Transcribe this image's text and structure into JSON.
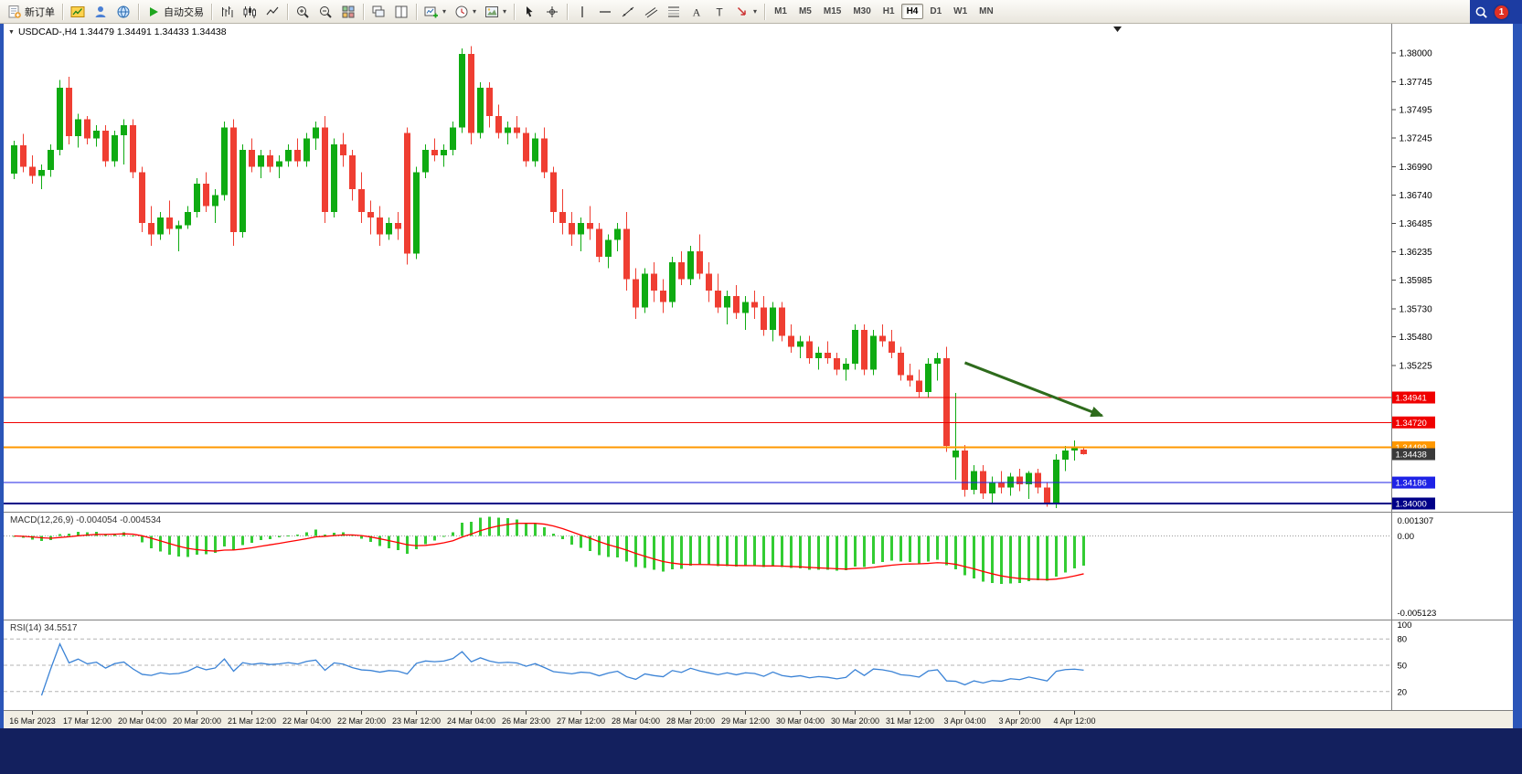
{
  "app": {
    "badge_count": "1"
  },
  "toolbar": {
    "groups": [
      [
        {
          "name": "new-order-button",
          "icon": "neworder",
          "label": "新订单"
        }
      ],
      [
        {
          "name": "market-watch-button",
          "icon": "marketwatch"
        },
        {
          "name": "data-window-button",
          "icon": "datawindow"
        },
        {
          "name": "navigator-button",
          "icon": "navigator"
        }
      ],
      [
        {
          "name": "autotrading-button",
          "icon": "play",
          "label": "自动交易"
        }
      ],
      [
        {
          "name": "bar-chart-button",
          "icon": "bars"
        },
        {
          "name": "candlestick-chart-button",
          "icon": "candles"
        },
        {
          "name": "line-chart-button",
          "icon": "linechart"
        }
      ],
      [
        {
          "name": "zoom-in-button",
          "icon": "zoomin"
        },
        {
          "name": "zoom-out-button",
          "icon": "zoomout"
        },
        {
          "name": "tile-windows-button",
          "icon": "tile"
        }
      ],
      [
        {
          "name": "cascade-windows-button",
          "icon": "wincascade"
        },
        {
          "name": "split-windows-button",
          "icon": "wintile"
        }
      ],
      [
        {
          "name": "indicators-button",
          "icon": "chartplus",
          "caret": true
        },
        {
          "name": "periods-button",
          "icon": "clock",
          "caret": true
        },
        {
          "name": "templates-button",
          "icon": "template",
          "caret": true
        }
      ],
      [
        {
          "name": "cursor-button",
          "icon": "cursor"
        },
        {
          "name": "crosshair-button",
          "icon": "crosshair"
        }
      ],
      [
        {
          "name": "vertical-line-button",
          "icon": "vline"
        },
        {
          "name": "horizontal-line-button",
          "icon": "hline"
        },
        {
          "name": "trendline-button",
          "icon": "trend"
        },
        {
          "name": "equidistant-channel-button",
          "icon": "channel"
        },
        {
          "name": "fibonacci-button",
          "icon": "fibo"
        },
        {
          "name": "text-button",
          "icon": "textA"
        },
        {
          "name": "text-label-button",
          "icon": "textT"
        },
        {
          "name": "arrows-button",
          "icon": "arrowsym",
          "caret": true
        }
      ]
    ],
    "timeframes": [
      "M1",
      "M5",
      "M15",
      "M30",
      "H1",
      "H4",
      "D1",
      "W1",
      "MN"
    ],
    "active_timeframe": "H4"
  },
  "chart": {
    "header": "USDCAD-,H4  1.34479 1.34491 1.34433 1.34438",
    "symbol": "USDCAD-",
    "period": "H4"
  },
  "macd": {
    "label": "MACD(12,26,9) -0.004054 -0.004534",
    "scale": [
      "0.001307",
      "0.00",
      "-0.005123"
    ]
  },
  "rsi": {
    "label": "RSI(14) 34.5517",
    "scale": [
      "100",
      "80",
      "50",
      "20"
    ],
    "levels": [
      80,
      50,
      20
    ]
  },
  "chart_data": {
    "type": "candlestick",
    "symbol": "USDCAD",
    "period": "H4",
    "colors": {
      "bull": "#0fab12",
      "bear": "#ef3e32",
      "macd_histogram": "#33cc33",
      "macd_signal": "#ff0000",
      "rsi_line": "#3b83d6"
    },
    "y_ticks": [
      "1.38000",
      "1.37745",
      "1.37495",
      "1.37245",
      "1.36990",
      "1.36740",
      "1.36485",
      "1.36235",
      "1.35985",
      "1.35730",
      "1.35480",
      "1.35225"
    ],
    "hlines": [
      {
        "price": 1.34941,
        "label": "1.34941",
        "color": "#f00000",
        "width": 1
      },
      {
        "price": 1.3472,
        "label": "1.34720",
        "color": "#f00000",
        "width": 1
      },
      {
        "price": 1.34499,
        "label": "1.34499",
        "color": "#ff9800",
        "width": 2
      },
      {
        "price": 1.34186,
        "label": "1.34186",
        "color": "#1e22e6",
        "width": 1
      },
      {
        "price": 1.34,
        "label": "1.34000",
        "color": "#000088",
        "width": 2
      }
    ],
    "current_price": {
      "value": 1.34438,
      "label": "1.34438",
      "box": "#3a3a3a"
    },
    "arrow": {
      "from": {
        "index": 104,
        "price": 1.3525
      },
      "to": {
        "index": 119,
        "price": 1.3478
      },
      "color": "#2e6b1c"
    },
    "x_label_first_index": 2,
    "x_label_step": 6,
    "x_labels": [
      "16 Mar 2023",
      "17 Mar 12:00",
      "20 Mar 04:00",
      "20 Mar 20:00",
      "21 Mar 12:00",
      "22 Mar 04:00",
      "22 Mar 20:00",
      "23 Mar 12:00",
      "24 Mar 04:00",
      "26 Mar 23:00",
      "27 Mar 12:00",
      "28 Mar 04:00",
      "28 Mar 20:00",
      "29 Mar 12:00",
      "30 Mar 04:00",
      "30 Mar 20:00",
      "31 Mar 12:00",
      "3 Apr 04:00",
      "3 Apr 20:00",
      "4 Apr 12:00"
    ],
    "candles": [
      [
        1.3693,
        1.3722,
        1.3688,
        1.3718
      ],
      [
        1.3718,
        1.3728,
        1.3694,
        1.3699
      ],
      [
        1.3699,
        1.3709,
        1.3684,
        1.3691
      ],
      [
        1.3691,
        1.3701,
        1.3679,
        1.3696
      ],
      [
        1.3696,
        1.3719,
        1.369,
        1.3714
      ],
      [
        1.3714,
        1.3776,
        1.3709,
        1.3769
      ],
      [
        1.3769,
        1.3779,
        1.3719,
        1.3726
      ],
      [
        1.3726,
        1.3746,
        1.3716,
        1.3741
      ],
      [
        1.3741,
        1.3744,
        1.3719,
        1.3724
      ],
      [
        1.3724,
        1.3736,
        1.3717,
        1.3731
      ],
      [
        1.3731,
        1.3736,
        1.3699,
        1.3704
      ],
      [
        1.3704,
        1.3731,
        1.3699,
        1.3727
      ],
      [
        1.3727,
        1.3741,
        1.3701,
        1.3736
      ],
      [
        1.3736,
        1.3741,
        1.3689,
        1.3694
      ],
      [
        1.3694,
        1.3699,
        1.3641,
        1.3649
      ],
      [
        1.3649,
        1.3664,
        1.3629,
        1.3639
      ],
      [
        1.3639,
        1.3659,
        1.3634,
        1.3654
      ],
      [
        1.3654,
        1.3669,
        1.3639,
        1.3644
      ],
      [
        1.3644,
        1.3651,
        1.3624,
        1.3647
      ],
      [
        1.3647,
        1.3664,
        1.3644,
        1.3659
      ],
      [
        1.3659,
        1.3689,
        1.3654,
        1.3684
      ],
      [
        1.3684,
        1.3694,
        1.3659,
        1.3664
      ],
      [
        1.3664,
        1.3679,
        1.3649,
        1.3674
      ],
      [
        1.3674,
        1.3739,
        1.3669,
        1.3734
      ],
      [
        1.3734,
        1.3741,
        1.3629,
        1.3641
      ],
      [
        1.3641,
        1.3719,
        1.3636,
        1.3714
      ],
      [
        1.3714,
        1.3724,
        1.3694,
        1.3699
      ],
      [
        1.3699,
        1.3714,
        1.3689,
        1.3709
      ],
      [
        1.3709,
        1.3714,
        1.3694,
        1.3699
      ],
      [
        1.3699,
        1.3709,
        1.3689,
        1.3704
      ],
      [
        1.3704,
        1.3719,
        1.3699,
        1.3714
      ],
      [
        1.3714,
        1.3724,
        1.3699,
        1.3704
      ],
      [
        1.3704,
        1.3729,
        1.3699,
        1.3724
      ],
      [
        1.3724,
        1.3739,
        1.3714,
        1.3734
      ],
      [
        1.3734,
        1.3744,
        1.3649,
        1.3659
      ],
      [
        1.3659,
        1.3724,
        1.3654,
        1.3719
      ],
      [
        1.3719,
        1.3729,
        1.3699,
        1.3709
      ],
      [
        1.3709,
        1.3714,
        1.3669,
        1.3679
      ],
      [
        1.3679,
        1.3694,
        1.3649,
        1.3659
      ],
      [
        1.3659,
        1.3669,
        1.3639,
        1.3654
      ],
      [
        1.3654,
        1.3664,
        1.3629,
        1.3639
      ],
      [
        1.3639,
        1.3654,
        1.3634,
        1.3649
      ],
      [
        1.3649,
        1.3659,
        1.3634,
        1.3644
      ],
      [
        1.3729,
        1.3734,
        1.3612,
        1.3622
      ],
      [
        1.3622,
        1.3699,
        1.3617,
        1.3694
      ],
      [
        1.3694,
        1.3719,
        1.3689,
        1.3714
      ],
      [
        1.3714,
        1.3724,
        1.3704,
        1.3709
      ],
      [
        1.3709,
        1.3719,
        1.3699,
        1.3714
      ],
      [
        1.3714,
        1.3739,
        1.3709,
        1.3734
      ],
      [
        1.3734,
        1.3804,
        1.3729,
        1.3799
      ],
      [
        1.3799,
        1.3806,
        1.3719,
        1.3729
      ],
      [
        1.3729,
        1.3774,
        1.3724,
        1.3769
      ],
      [
        1.3769,
        1.3774,
        1.3734,
        1.3744
      ],
      [
        1.3744,
        1.3754,
        1.3724,
        1.3729
      ],
      [
        1.3729,
        1.3739,
        1.3719,
        1.3734
      ],
      [
        1.3734,
        1.3744,
        1.3724,
        1.3729
      ],
      [
        1.3729,
        1.3734,
        1.3699,
        1.3704
      ],
      [
        1.3704,
        1.3729,
        1.3699,
        1.3724
      ],
      [
        1.3724,
        1.3734,
        1.3689,
        1.3694
      ],
      [
        1.3694,
        1.3699,
        1.3649,
        1.3659
      ],
      [
        1.3659,
        1.3679,
        1.3639,
        1.3649
      ],
      [
        1.3649,
        1.3659,
        1.3629,
        1.3639
      ],
      [
        1.3639,
        1.3654,
        1.3624,
        1.3649
      ],
      [
        1.3649,
        1.3664,
        1.3634,
        1.3644
      ],
      [
        1.3644,
        1.3649,
        1.3614,
        1.3619
      ],
      [
        1.3619,
        1.3639,
        1.3609,
        1.3634
      ],
      [
        1.3634,
        1.3649,
        1.3624,
        1.3644
      ],
      [
        1.3644,
        1.3659,
        1.3589,
        1.3599
      ],
      [
        1.3599,
        1.3609,
        1.3564,
        1.3574
      ],
      [
        1.3574,
        1.3609,
        1.3569,
        1.3604
      ],
      [
        1.3604,
        1.3614,
        1.3579,
        1.3589
      ],
      [
        1.3589,
        1.3599,
        1.3569,
        1.3579
      ],
      [
        1.3579,
        1.3619,
        1.3574,
        1.3614
      ],
      [
        1.3614,
        1.3624,
        1.3594,
        1.3599
      ],
      [
        1.3599,
        1.3629,
        1.3594,
        1.3624
      ],
      [
        1.3624,
        1.3639,
        1.3599,
        1.3604
      ],
      [
        1.3604,
        1.3614,
        1.3579,
        1.3589
      ],
      [
        1.3589,
        1.3604,
        1.3569,
        1.3574
      ],
      [
        1.3574,
        1.3589,
        1.3559,
        1.3584
      ],
      [
        1.3584,
        1.3594,
        1.3564,
        1.3569
      ],
      [
        1.3569,
        1.3584,
        1.3554,
        1.3579
      ],
      [
        1.3579,
        1.3589,
        1.3564,
        1.3574
      ],
      [
        1.3574,
        1.3584,
        1.3549,
        1.3554
      ],
      [
        1.3554,
        1.3579,
        1.3544,
        1.3574
      ],
      [
        1.3574,
        1.3579,
        1.3544,
        1.3549
      ],
      [
        1.3549,
        1.3559,
        1.3534,
        1.3539
      ],
      [
        1.3539,
        1.3549,
        1.3529,
        1.3544
      ],
      [
        1.3544,
        1.3549,
        1.3524,
        1.3529
      ],
      [
        1.3529,
        1.3539,
        1.3519,
        1.3534
      ],
      [
        1.3534,
        1.3544,
        1.3524,
        1.3529
      ],
      [
        1.3529,
        1.3534,
        1.3514,
        1.3519
      ],
      [
        1.3519,
        1.3529,
        1.3509,
        1.3524
      ],
      [
        1.3524,
        1.3559,
        1.3519,
        1.3554
      ],
      [
        1.3554,
        1.3559,
        1.3514,
        1.3519
      ],
      [
        1.3519,
        1.3554,
        1.3514,
        1.3549
      ],
      [
        1.3549,
        1.3559,
        1.3539,
        1.3544
      ],
      [
        1.3544,
        1.3554,
        1.3529,
        1.3534
      ],
      [
        1.3534,
        1.3539,
        1.3509,
        1.3514
      ],
      [
        1.3514,
        1.3524,
        1.3504,
        1.3509
      ],
      [
        1.3509,
        1.3519,
        1.3494,
        1.3499
      ],
      [
        1.3499,
        1.3529,
        1.3494,
        1.3524
      ],
      [
        1.3524,
        1.3534,
        1.3509,
        1.3529
      ],
      [
        1.3529,
        1.3539,
        1.3446,
        1.3451
      ],
      [
        1.3441,
        1.3498,
        1.3421,
        1.3447
      ],
      [
        1.3447,
        1.3452,
        1.3406,
        1.3412
      ],
      [
        1.3412,
        1.3434,
        1.3408,
        1.3429
      ],
      [
        1.3429,
        1.3434,
        1.3404,
        1.3409
      ],
      [
        1.3409,
        1.3424,
        1.3399,
        1.3419
      ],
      [
        1.3419,
        1.3429,
        1.3409,
        1.3414
      ],
      [
        1.3414,
        1.3427,
        1.3407,
        1.3424
      ],
      [
        1.3424,
        1.3431,
        1.3411,
        1.3417
      ],
      [
        1.3417,
        1.3429,
        1.3404,
        1.3427
      ],
      [
        1.3427,
        1.3431,
        1.3409,
        1.3414
      ],
      [
        1.3414,
        1.3419,
        1.3397,
        1.3399
      ],
      [
        1.3399,
        1.3444,
        1.3396,
        1.3439
      ],
      [
        1.3439,
        1.3451,
        1.3429,
        1.3447
      ],
      [
        1.3447,
        1.3456,
        1.3438,
        1.3449
      ],
      [
        1.34479,
        1.34491,
        1.34433,
        1.34438
      ]
    ],
    "indicators": [
      {
        "name": "MACD",
        "params": [
          12,
          26,
          9
        ],
        "display": "-0.004054 -0.004534",
        "derived_from_candles": true
      },
      {
        "name": "RSI",
        "params": [
          14
        ],
        "display": "34.5517",
        "derived_from_candles": true
      }
    ]
  }
}
